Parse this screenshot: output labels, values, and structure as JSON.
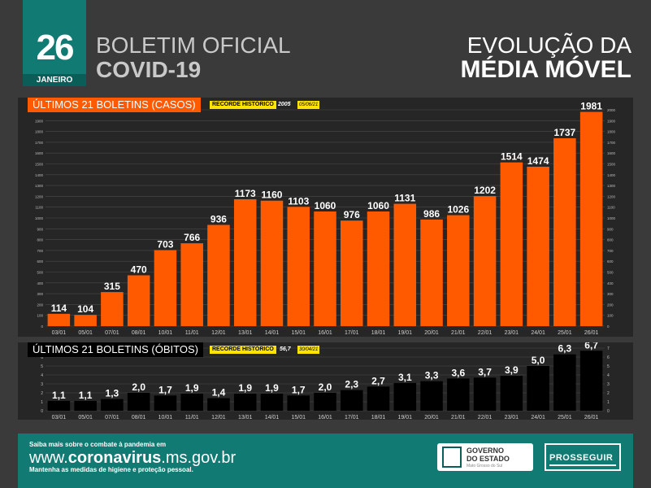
{
  "header": {
    "day": "26",
    "month": "JANEIRO",
    "title_line1": "BOLETIM OFICIAL",
    "title_line2": "COVID-19",
    "right_line1": "EVOLUÇÃO DA",
    "right_line2": "MÉDIA MÓVEL"
  },
  "cases_panel": {
    "label": "ÚLTIMOS 21 BOLETINS (CASOS)",
    "record_label": "RECORDE HISTÓRICO",
    "record_value": "2005",
    "record_date": "05/06/21"
  },
  "deaths_panel": {
    "label": "ÚLTIMOS 21 BOLETINS (ÓBITOS)",
    "record_label": "RECORDE HISTÓRICO",
    "record_value": "56,7",
    "record_date": "30/04/21"
  },
  "chart_data": [
    {
      "type": "bar",
      "categories": [
        "03/01",
        "05/01",
        "07/01",
        "08/01",
        "10/01",
        "11/01",
        "12/01",
        "13/01",
        "14/01",
        "15/01",
        "16/01",
        "17/01",
        "18/01",
        "19/01",
        "20/01",
        "21/01",
        "22/01",
        "23/01",
        "24/01",
        "25/01",
        "26/01"
      ],
      "values": [
        114,
        104,
        315,
        470,
        703,
        766,
        936,
        1173,
        1160,
        1103,
        1060,
        976,
        1060,
        1131,
        986,
        1026,
        1202,
        1514,
        1474,
        1737,
        1981
      ],
      "value_labels": [
        "114",
        "104",
        "315",
        "470",
        "703",
        "766",
        "936",
        "1173",
        "1160",
        "1103",
        "1060",
        "976",
        "1060",
        "1131",
        "986",
        "1026",
        "1202",
        "1514",
        "1474",
        "1737",
        "1981"
      ],
      "ylim": [
        0,
        2000
      ],
      "yticks": [
        0,
        100,
        200,
        300,
        400,
        500,
        600,
        700,
        800,
        900,
        1000,
        1100,
        1200,
        1300,
        1400,
        1500,
        1600,
        1700,
        1800,
        1900,
        2000
      ],
      "bar_color": "#ff5a00",
      "grid": true
    },
    {
      "type": "bar",
      "categories": [
        "03/01",
        "05/01",
        "07/01",
        "08/01",
        "10/01",
        "11/01",
        "12/01",
        "13/01",
        "14/01",
        "15/01",
        "16/01",
        "17/01",
        "18/01",
        "19/01",
        "20/01",
        "21/01",
        "22/01",
        "23/01",
        "24/01",
        "25/01",
        "26/01"
      ],
      "values": [
        1.1,
        1.1,
        1.3,
        2.0,
        1.7,
        1.9,
        1.4,
        1.9,
        1.9,
        1.7,
        2.0,
        2.3,
        2.7,
        3.1,
        3.3,
        3.6,
        3.7,
        3.9,
        5.0,
        6.3,
        6.7
      ],
      "value_labels": [
        "1,1",
        "1,1",
        "1,3",
        "2,0",
        "1,7",
        "1,9",
        "1,4",
        "1,9",
        "1,9",
        "1,7",
        "2,0",
        "2,3",
        "2,7",
        "3,1",
        "3,3",
        "3,6",
        "3,7",
        "3,9",
        "5,0",
        "6,3",
        "6,7"
      ],
      "ylim": [
        0,
        7
      ],
      "yticks": [
        0,
        1,
        2,
        3,
        4,
        5,
        6,
        7
      ],
      "bar_color": "#000000",
      "grid": true
    }
  ],
  "footer": {
    "line1": "Saiba mais sobre o combate à pandemia em",
    "url_prefix": "www.",
    "url_bold": "coronavirus",
    "url_suffix": ".ms.gov.br",
    "line3": "Mantenha as medidas de higiene e proteção pessoal.",
    "gov_line1": "GOVERNO",
    "gov_line2": "DO ESTADO",
    "gov_sub": "Mato Grosso do Sul",
    "prosseguir": "PROSSEGUIR"
  }
}
